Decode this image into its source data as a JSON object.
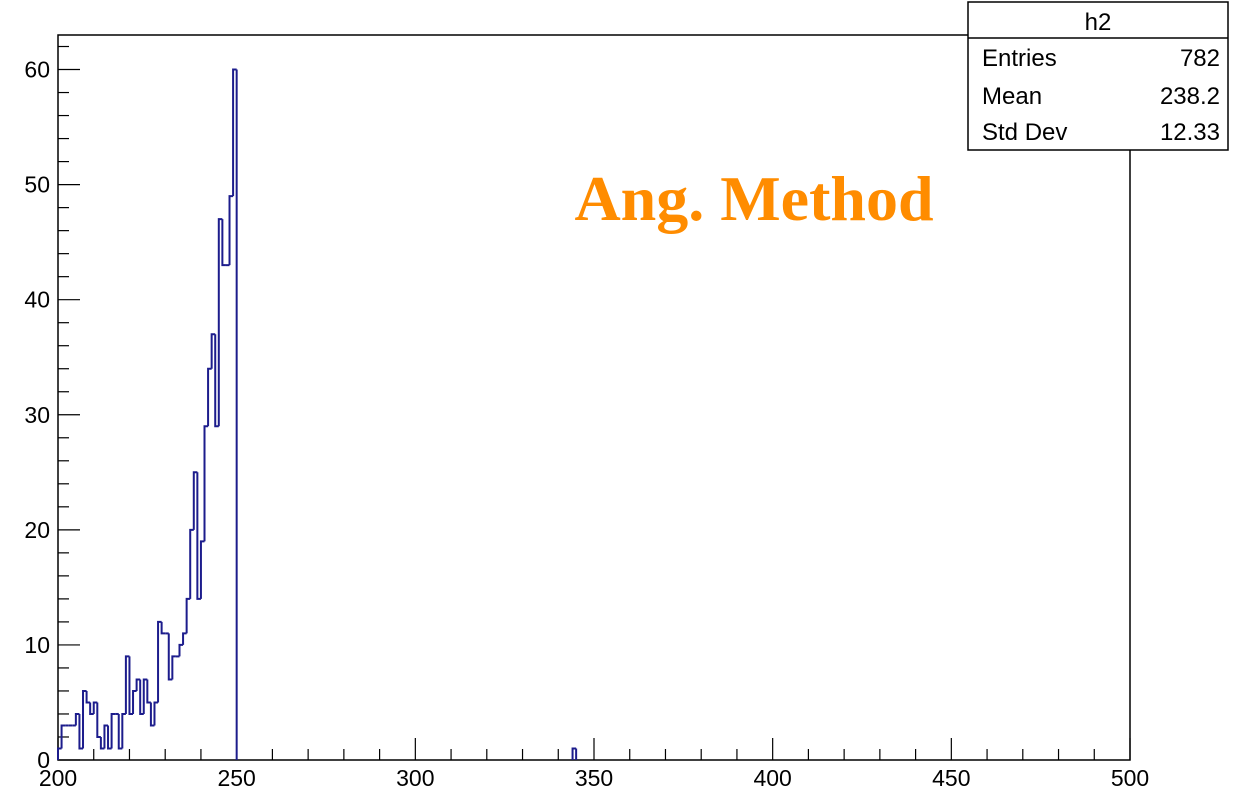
{
  "chart_data": {
    "type": "histogram",
    "title": "",
    "xlabel": "",
    "ylabel": "",
    "xlim": [
      200,
      500
    ],
    "ylim": [
      0,
      63
    ],
    "x_ticks": [
      200,
      250,
      300,
      350,
      400,
      450,
      500
    ],
    "x_tick_labels": [
      "200",
      "250",
      "300",
      "350",
      "400",
      "450",
      "500"
    ],
    "y_ticks": [
      0,
      10,
      20,
      30,
      40,
      50,
      60
    ],
    "y_tick_labels": [
      "0",
      "10",
      "20",
      "30",
      "40",
      "50",
      "60"
    ],
    "bin_width": 1,
    "bins": [
      {
        "x": 200,
        "y": 1
      },
      {
        "x": 201,
        "y": 3
      },
      {
        "x": 202,
        "y": 3
      },
      {
        "x": 203,
        "y": 3
      },
      {
        "x": 204,
        "y": 3
      },
      {
        "x": 205,
        "y": 4
      },
      {
        "x": 206,
        "y": 1
      },
      {
        "x": 207,
        "y": 6
      },
      {
        "x": 208,
        "y": 5
      },
      {
        "x": 209,
        "y": 4
      },
      {
        "x": 210,
        "y": 5
      },
      {
        "x": 211,
        "y": 2
      },
      {
        "x": 212,
        "y": 1
      },
      {
        "x": 213,
        "y": 3
      },
      {
        "x": 214,
        "y": 1
      },
      {
        "x": 215,
        "y": 4
      },
      {
        "x": 216,
        "y": 4
      },
      {
        "x": 217,
        "y": 1
      },
      {
        "x": 218,
        "y": 4
      },
      {
        "x": 219,
        "y": 9
      },
      {
        "x": 220,
        "y": 4
      },
      {
        "x": 221,
        "y": 6
      },
      {
        "x": 222,
        "y": 7
      },
      {
        "x": 223,
        "y": 4
      },
      {
        "x": 224,
        "y": 7
      },
      {
        "x": 225,
        "y": 5
      },
      {
        "x": 226,
        "y": 3
      },
      {
        "x": 227,
        "y": 5
      },
      {
        "x": 228,
        "y": 12
      },
      {
        "x": 229,
        "y": 11
      },
      {
        "x": 230,
        "y": 11
      },
      {
        "x": 231,
        "y": 7
      },
      {
        "x": 232,
        "y": 9
      },
      {
        "x": 233,
        "y": 9
      },
      {
        "x": 234,
        "y": 10
      },
      {
        "x": 235,
        "y": 11
      },
      {
        "x": 236,
        "y": 14
      },
      {
        "x": 237,
        "y": 20
      },
      {
        "x": 238,
        "y": 25
      },
      {
        "x": 239,
        "y": 14
      },
      {
        "x": 240,
        "y": 19
      },
      {
        "x": 241,
        "y": 29
      },
      {
        "x": 242,
        "y": 34
      },
      {
        "x": 243,
        "y": 37
      },
      {
        "x": 244,
        "y": 29
      },
      {
        "x": 245,
        "y": 47
      },
      {
        "x": 246,
        "y": 43
      },
      {
        "x": 247,
        "y": 43
      },
      {
        "x": 248,
        "y": 49
      },
      {
        "x": 249,
        "y": 60
      },
      {
        "x": 344,
        "y": 1
      }
    ],
    "line_color": "#1c1c8c",
    "annotation": {
      "text": "Ang. Method",
      "color": "#ff8c00"
    },
    "stats_box": {
      "title": "h2",
      "rows": [
        {
          "label": "Entries",
          "value": "782"
        },
        {
          "label": "Mean",
          "value": "238.2"
        },
        {
          "label": "Std Dev",
          "value": "12.33"
        }
      ]
    }
  }
}
